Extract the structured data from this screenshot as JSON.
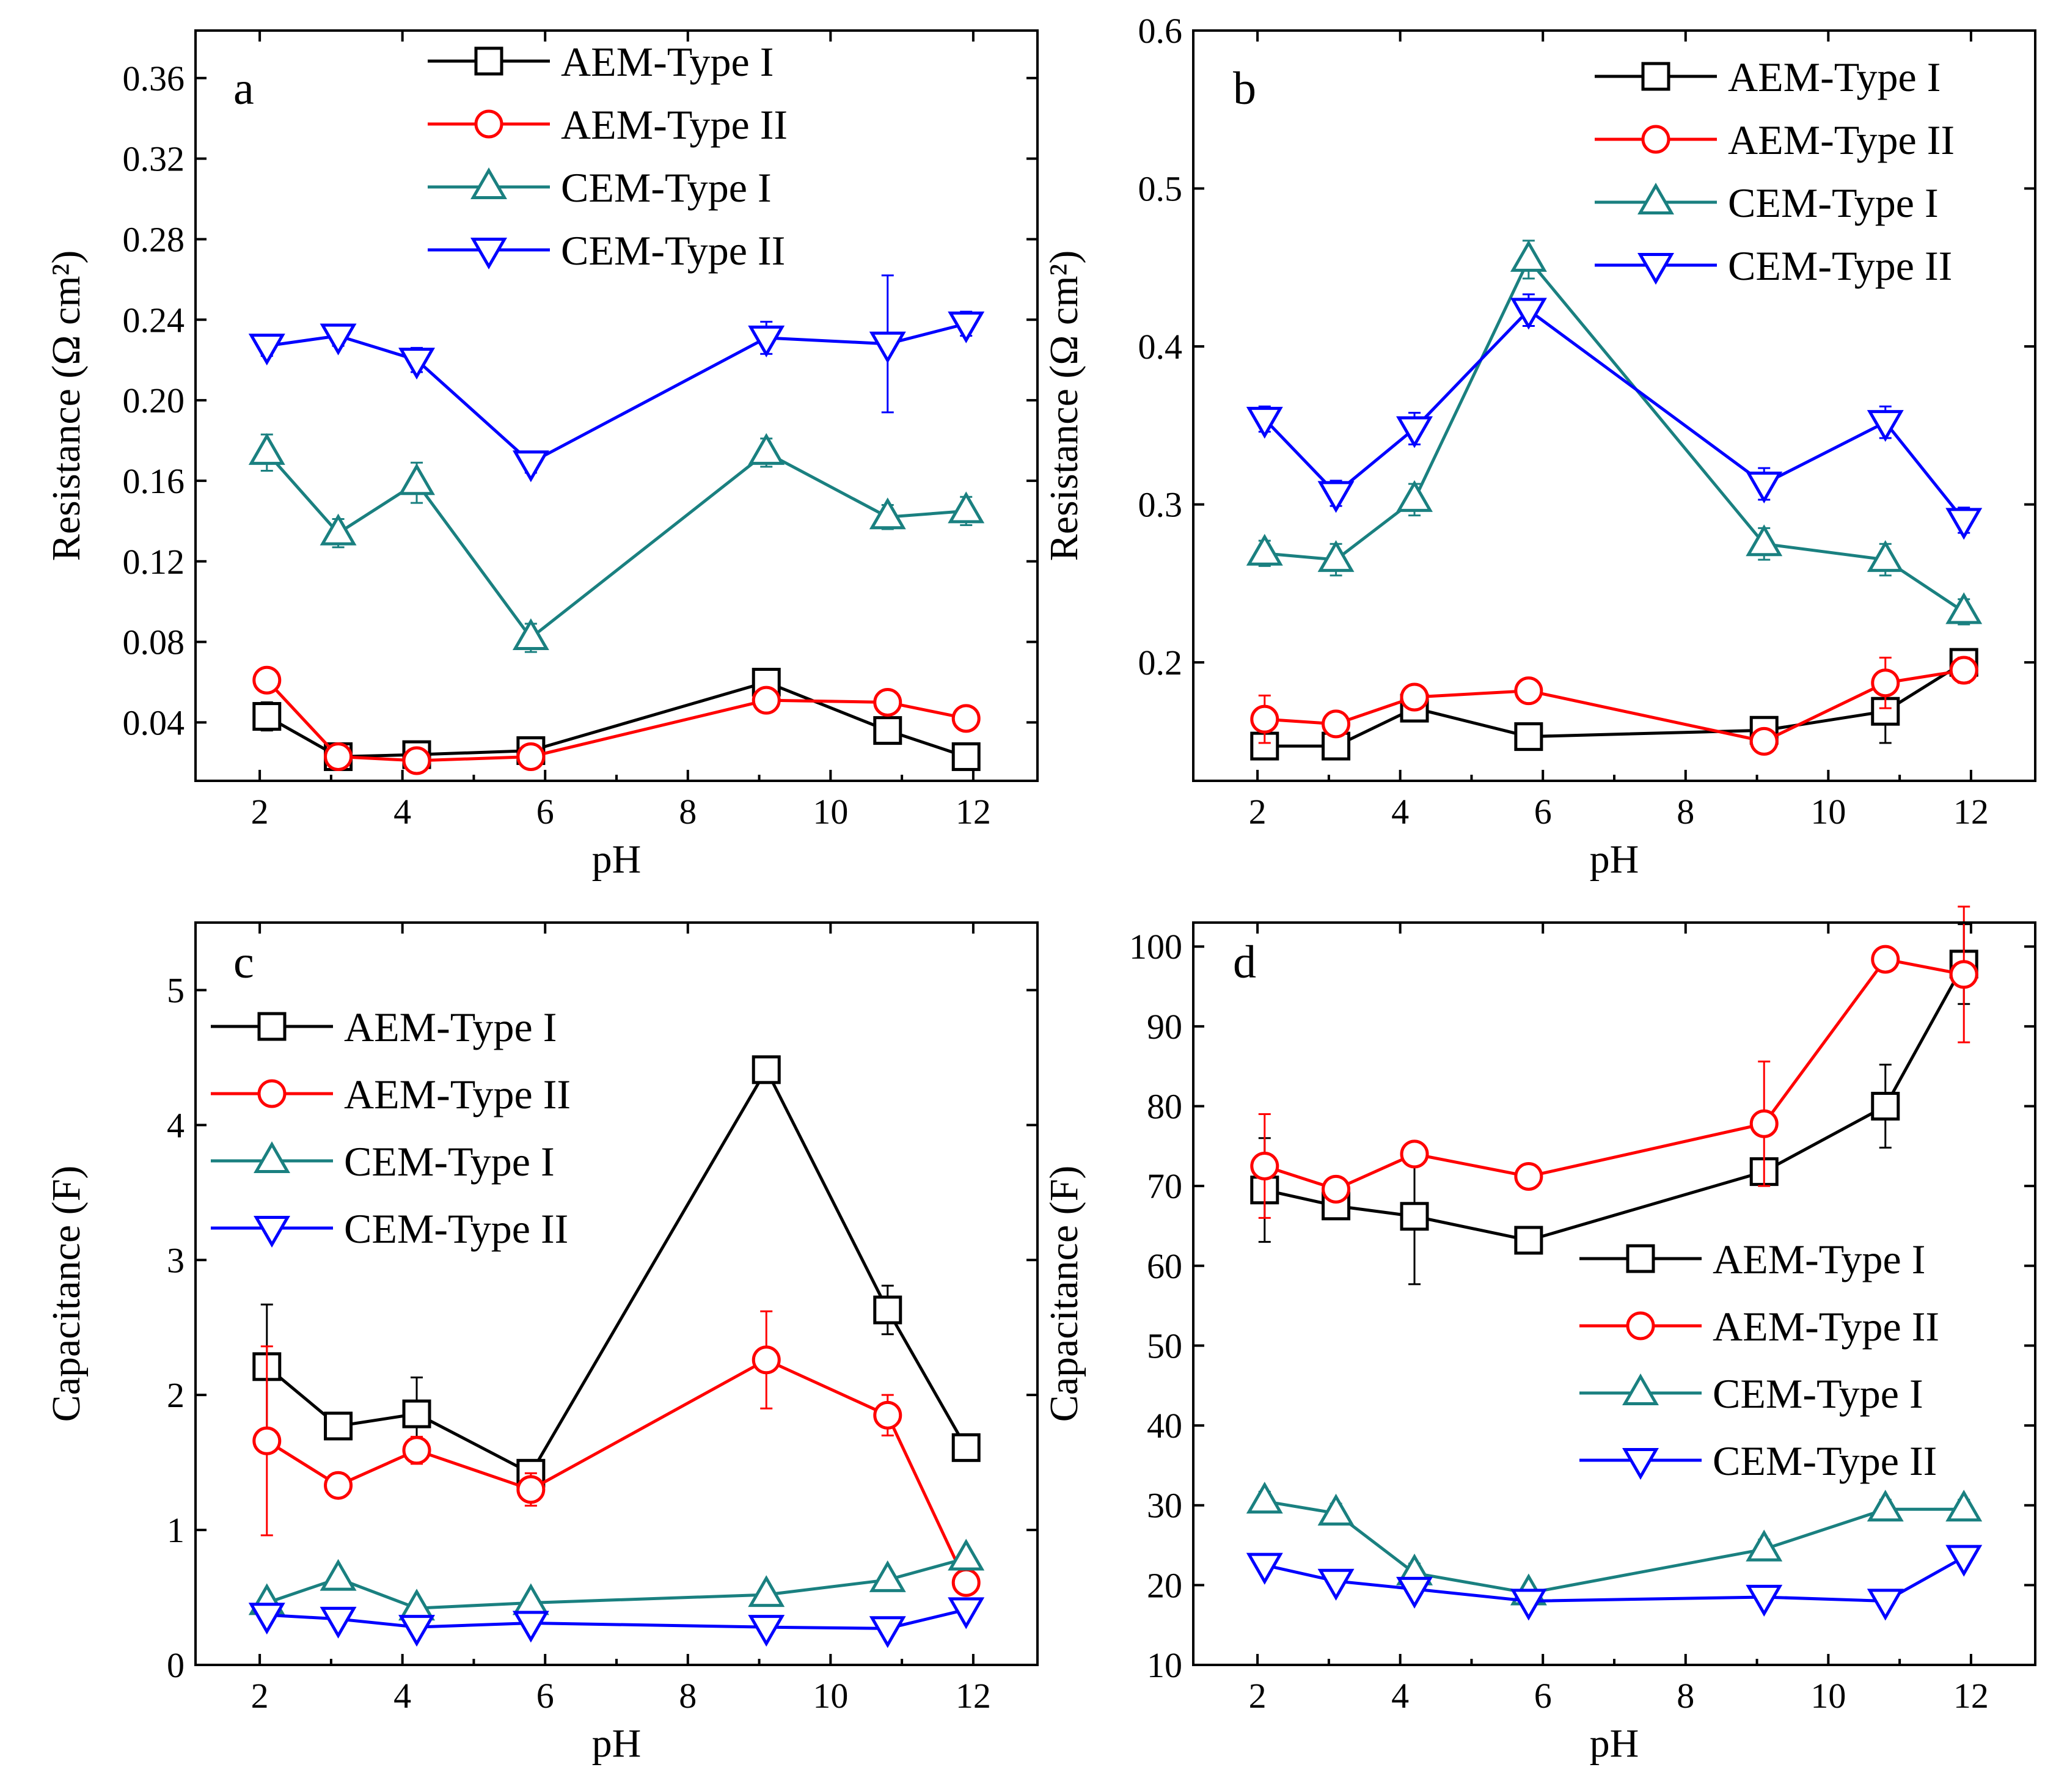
{
  "colors": {
    "aem1": "#000000",
    "aem2": "#ff0000",
    "cem1": "#1a8080",
    "cem2": "#0000ff"
  },
  "chart_data": [
    {
      "panel": "a",
      "type": "line",
      "xlabel": "pH",
      "ylabel": "Resistance (Ω cm²)",
      "xlim": [
        1.1,
        12.9
      ],
      "ylim": [
        0.011,
        0.3836
      ],
      "xticks": [
        2,
        4,
        6,
        8,
        10,
        12
      ],
      "xtick_labels": [
        "2",
        "4",
        "6",
        "8",
        "10",
        "12"
      ],
      "yticks": [
        0.04,
        0.08,
        0.12,
        0.16,
        0.2,
        0.24,
        0.28,
        0.32,
        0.36
      ],
      "ytick_labels": [
        "0.04",
        "0.08",
        "0.12",
        "0.16",
        "0.20",
        "0.24",
        "0.28",
        "0.32",
        "0.36"
      ],
      "legend_position": "top-right",
      "series": [
        {
          "name": "AEM-Type I",
          "marker": "square",
          "color_key": "aem1",
          "x": [
            2.1,
            3.1,
            4.2,
            5.8,
            9.1,
            10.8,
            11.9
          ],
          "y": [
            0.043,
            0.023,
            0.024,
            0.026,
            0.06,
            0.036,
            0.023
          ],
          "err": [
            0.007,
            0.003,
            0.003,
            0.003,
            0.004,
            0.005,
            0.003
          ]
        },
        {
          "name": "AEM-Type II",
          "marker": "circle",
          "color_key": "aem2",
          "x": [
            2.1,
            3.1,
            4.2,
            5.8,
            9.1,
            10.8,
            11.9
          ],
          "y": [
            0.061,
            0.023,
            0.021,
            0.023,
            0.051,
            0.05,
            0.042
          ],
          "err": [
            0.006,
            0.003,
            0.003,
            0.003,
            0.006,
            0.005,
            0.004
          ]
        },
        {
          "name": "CEM-Type I",
          "marker": "triangle-up",
          "color_key": "cem1",
          "x": [
            2.1,
            3.1,
            4.2,
            5.8,
            9.1,
            10.8,
            11.9
          ],
          "y": [
            0.174,
            0.134,
            0.159,
            0.082,
            0.174,
            0.142,
            0.145
          ],
          "err": [
            0.009,
            0.007,
            0.01,
            0.007,
            0.007,
            0.006,
            0.007
          ]
        },
        {
          "name": "CEM-Type II",
          "marker": "triangle-down",
          "color_key": "cem2",
          "x": [
            2.1,
            3.1,
            4.2,
            5.8,
            9.1,
            10.8,
            11.9
          ],
          "y": [
            0.227,
            0.232,
            0.22,
            0.169,
            0.231,
            0.228,
            0.238
          ],
          "err": [
            0.005,
            0.005,
            0.006,
            0.005,
            0.008,
            0.034,
            0.006
          ]
        }
      ]
    },
    {
      "panel": "b",
      "type": "line",
      "xlabel": "pH",
      "ylabel": "Resistance (Ω cm²)",
      "xlim": [
        1.1,
        12.9
      ],
      "ylim": [
        0.125,
        0.6
      ],
      "xticks": [
        2,
        4,
        6,
        8,
        10,
        12
      ],
      "xtick_labels": [
        "2",
        "4",
        "6",
        "8",
        "10",
        "12"
      ],
      "yticks": [
        0.2,
        0.3,
        0.4,
        0.5,
        0.6
      ],
      "ytick_labels": [
        "0.2",
        "0.3",
        "0.4",
        "0.5",
        "0.6"
      ],
      "legend_position": "top-right",
      "series": [
        {
          "name": "AEM-Type I",
          "marker": "square",
          "color_key": "aem1",
          "x": [
            2.1,
            3.1,
            4.2,
            5.8,
            9.1,
            10.8,
            11.9
          ],
          "y": [
            0.147,
            0.147,
            0.171,
            0.153,
            0.157,
            0.169,
            0.2
          ],
          "err": [
            0.008,
            0.006,
            0.006,
            0.005,
            0.006,
            0.02,
            0.008
          ]
        },
        {
          "name": "AEM-Type II",
          "marker": "circle",
          "color_key": "aem2",
          "x": [
            2.1,
            3.1,
            4.2,
            5.8,
            9.1,
            10.8,
            11.9
          ],
          "y": [
            0.164,
            0.161,
            0.178,
            0.182,
            0.15,
            0.187,
            0.195
          ],
          "err": [
            0.015,
            0.006,
            0.006,
            0.005,
            0.006,
            0.016,
            0.008
          ]
        },
        {
          "name": "CEM-Type I",
          "marker": "triangle-up",
          "color_key": "cem1",
          "x": [
            2.1,
            3.1,
            4.2,
            5.8,
            9.1,
            10.8,
            11.9
          ],
          "y": [
            0.269,
            0.265,
            0.303,
            0.455,
            0.275,
            0.265,
            0.232
          ],
          "err": [
            0.008,
            0.01,
            0.01,
            0.012,
            0.01,
            0.01,
            0.008
          ]
        },
        {
          "name": "CEM-Type II",
          "marker": "triangle-down",
          "color_key": "cem2",
          "x": [
            2.1,
            3.1,
            4.2,
            5.8,
            9.1,
            10.8,
            11.9
          ],
          "y": [
            0.354,
            0.307,
            0.348,
            0.423,
            0.313,
            0.352,
            0.29
          ],
          "err": [
            0.008,
            0.008,
            0.01,
            0.01,
            0.01,
            0.01,
            0.008
          ]
        }
      ]
    },
    {
      "panel": "c",
      "type": "line",
      "xlabel": "pH",
      "ylabel": "Capacitance (F)",
      "xlim": [
        1.1,
        12.9
      ],
      "ylim": [
        0,
        5.5
      ],
      "xticks": [
        2,
        4,
        6,
        8,
        10,
        12
      ],
      "xtick_labels": [
        "2",
        "4",
        "6",
        "8",
        "10",
        "12"
      ],
      "yticks": [
        0,
        1,
        2,
        3,
        4,
        5
      ],
      "ytick_labels": [
        "0",
        "1",
        "2",
        "3",
        "4",
        "5"
      ],
      "legend_position": "top-left",
      "series": [
        {
          "name": "AEM-Type I",
          "marker": "square",
          "color_key": "aem1",
          "x": [
            2.1,
            3.1,
            4.2,
            5.8,
            9.1,
            10.8,
            11.9
          ],
          "y": [
            2.21,
            1.77,
            1.86,
            1.42,
            4.41,
            2.63,
            1.61
          ],
          "err": [
            0.46,
            0.08,
            0.27,
            0.06,
            0.05,
            0.18,
            0.05
          ]
        },
        {
          "name": "AEM-Type II",
          "marker": "circle",
          "color_key": "aem2",
          "x": [
            2.1,
            3.1,
            4.2,
            5.8,
            9.1,
            10.8,
            11.9
          ],
          "y": [
            1.66,
            1.33,
            1.59,
            1.3,
            2.26,
            1.85,
            0.61
          ],
          "err": [
            0.7,
            0.08,
            0.1,
            0.12,
            0.36,
            0.15,
            0.05
          ]
        },
        {
          "name": "CEM-Type I",
          "marker": "triangle-up",
          "color_key": "cem1",
          "x": [
            2.1,
            3.1,
            4.2,
            5.8,
            9.1,
            10.8,
            11.9
          ],
          "y": [
            0.46,
            0.64,
            0.42,
            0.46,
            0.52,
            0.63,
            0.79
          ],
          "err": [
            0.05,
            0.05,
            0.05,
            0.05,
            0.05,
            0.05,
            0.05
          ]
        },
        {
          "name": "CEM-Type II",
          "marker": "triangle-down",
          "color_key": "cem2",
          "x": [
            2.1,
            3.1,
            4.2,
            5.8,
            9.1,
            10.8,
            11.9
          ],
          "y": [
            0.37,
            0.34,
            0.28,
            0.31,
            0.28,
            0.27,
            0.41
          ],
          "err": [
            0.05,
            0.05,
            0.05,
            0.05,
            0.05,
            0.05,
            0.05
          ]
        }
      ]
    },
    {
      "panel": "d",
      "type": "line",
      "xlabel": "pH",
      "ylabel": "Capacitance (F)",
      "xlim": [
        1.1,
        12.9
      ],
      "ylim": [
        10,
        103
      ],
      "xticks": [
        2,
        4,
        6,
        8,
        10,
        12
      ],
      "xtick_labels": [
        "2",
        "4",
        "6",
        "8",
        "10",
        "12"
      ],
      "yticks": [
        10,
        20,
        30,
        40,
        50,
        60,
        70,
        80,
        90,
        100
      ],
      "ytick_labels": [
        "10",
        "20",
        "30",
        "40",
        "50",
        "60",
        "70",
        "80",
        "90",
        "100"
      ],
      "legend_position": "center-right",
      "series": [
        {
          "name": "AEM-Type I",
          "marker": "square",
          "color_key": "aem1",
          "x": [
            2.1,
            3.1,
            4.2,
            5.8,
            9.1,
            10.8,
            11.9
          ],
          "y": [
            69.5,
            67.5,
            66.2,
            63.2,
            71.8,
            80.0,
            97.8
          ],
          "err": [
            6.5,
            1.5,
            8.5,
            1.0,
            1.5,
            5.2,
            5.0
          ]
        },
        {
          "name": "AEM-Type II",
          "marker": "circle",
          "color_key": "aem2",
          "x": [
            2.1,
            3.1,
            4.2,
            5.8,
            9.1,
            10.8,
            11.9
          ],
          "y": [
            72.5,
            69.6,
            74.0,
            71.2,
            77.8,
            98.4,
            96.5
          ],
          "err": [
            6.5,
            1.0,
            1.0,
            1.0,
            7.8,
            1.0,
            8.5
          ]
        },
        {
          "name": "CEM-Type I",
          "marker": "triangle-up",
          "color_key": "cem1",
          "x": [
            2.1,
            3.1,
            4.2,
            5.8,
            9.1,
            10.8,
            11.9
          ],
          "y": [
            30.5,
            29.0,
            21.5,
            19.0,
            24.5,
            29.5,
            29.5
          ],
          "err": [
            1.2,
            1.2,
            1.2,
            1.0,
            1.2,
            1.2,
            1.2
          ]
        },
        {
          "name": "CEM-Type II",
          "marker": "triangle-down",
          "color_key": "cem2",
          "x": [
            2.1,
            3.1,
            4.2,
            5.8,
            9.1,
            10.8,
            11.9
          ],
          "y": [
            22.5,
            20.5,
            19.5,
            18.0,
            18.5,
            18.0,
            23.5
          ],
          "err": [
            1.0,
            1.0,
            1.0,
            1.0,
            1.0,
            1.0,
            1.0
          ]
        }
      ]
    }
  ]
}
